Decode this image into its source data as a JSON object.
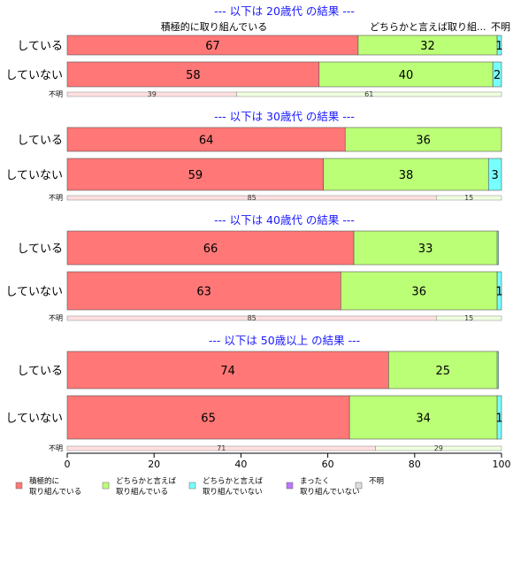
{
  "chart_data": {
    "type": "bar",
    "orientation": "horizontal-stacked-percent",
    "xlim": [
      0,
      100
    ],
    "x_ticks": [
      "0",
      "20",
      "40",
      "60",
      "80",
      "100"
    ],
    "column_headers": [
      "積極的に取り組んでいる",
      "どちらかと言えば取り組...",
      "不明"
    ],
    "segment_colors": [
      "#ff7777",
      "#bbff77",
      "#77ffff",
      "#bb77ff",
      "#dddddd"
    ],
    "legend": [
      {
        "line1": "積極的に",
        "line2": "取り組んでいる",
        "color": "#ff7777"
      },
      {
        "line1": "どちらかと言えば",
        "line2": "取り組んでいる",
        "color": "#bbff77"
      },
      {
        "line1": "どちらかと言えば",
        "line2": "取り組んでいない",
        "color": "#77ffff"
      },
      {
        "line1": "まったく",
        "line2": "取り組んでいない",
        "color": "#bb77ff"
      },
      {
        "line1": "不明",
        "line2": "",
        "color": "#dddddd"
      }
    ],
    "panels": [
      {
        "title": "--- 以下は 20歳代 の結果 ---",
        "rows": [
          {
            "label": "している",
            "values": [
              67,
              32,
              1,
              0
            ]
          },
          {
            "label": "していない",
            "values": [
              58,
              40,
              2,
              0
            ]
          }
        ],
        "unknown": {
          "label": "不明",
          "values": [
            39,
            61
          ]
        }
      },
      {
        "title": "--- 以下は 30歳代 の結果 ---",
        "rows": [
          {
            "label": "している",
            "values": [
              64,
              36,
              0,
              0
            ]
          },
          {
            "label": "していない",
            "values": [
              59,
              38,
              3,
              0
            ]
          }
        ],
        "unknown": {
          "label": "不明",
          "values": [
            85,
            15
          ]
        }
      },
      {
        "title": "--- 以下は 40歳代 の結果 ---",
        "rows": [
          {
            "label": "している",
            "values": [
              66,
              33,
              0.3,
              0
            ]
          },
          {
            "label": "していない",
            "values": [
              63,
              36,
              1,
              0
            ]
          }
        ],
        "unknown": {
          "label": "不明",
          "values": [
            85,
            15
          ]
        }
      },
      {
        "title": "--- 以下は 50歳以上 の結果 ---",
        "rows": [
          {
            "label": "している",
            "values": [
              74,
              25,
              0.3,
              0
            ]
          },
          {
            "label": "していない",
            "values": [
              65,
              34,
              1,
              0
            ]
          }
        ],
        "unknown": {
          "label": "不明",
          "values": [
            71,
            29
          ]
        }
      }
    ]
  }
}
